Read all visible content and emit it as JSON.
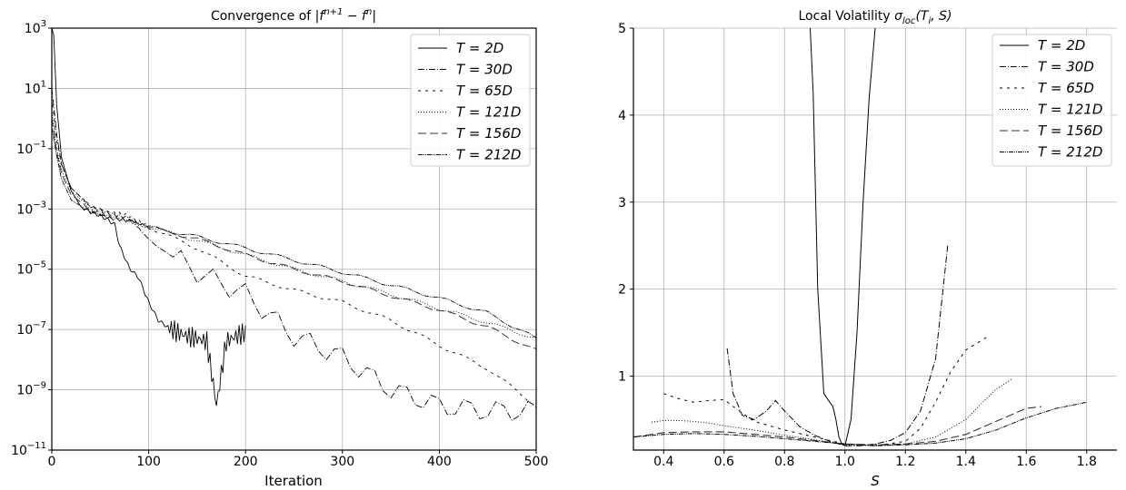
{
  "chart_data": [
    {
      "type": "line",
      "title": "Convergence of |f^{n+1} - f^n|",
      "title_parts": [
        "Convergence of ",
        "|f",
        "n+1",
        " − f",
        "n",
        "|"
      ],
      "xlabel": "Iteration",
      "ylabel": "",
      "yscale": "log",
      "xlim": [
        0,
        500
      ],
      "ylim_exp": [
        -11,
        3
      ],
      "xticks": [
        0,
        100,
        200,
        300,
        400,
        500
      ],
      "yticks_exp": [
        -11,
        -9,
        -7,
        -5,
        -3,
        -1,
        1,
        3
      ],
      "grid": true,
      "legend_position": "top-right",
      "series": [
        {
          "name": "T = 2D",
          "x": [
            0,
            2,
            5,
            10,
            20,
            30,
            40,
            50,
            60,
            65,
            70,
            80,
            90,
            100,
            110,
            120,
            130,
            140,
            150,
            160,
            170,
            180,
            190,
            200
          ],
          "y": [
            1000,
            600,
            3,
            0.05,
            0.004,
            0.0012,
            0.0008,
            0.0006,
            0.0004,
            0.0003,
            6e-05,
            1.1e-05,
            5e-06,
            8e-07,
            2e-07,
            1.2e-07,
            8e-08,
            6e-08,
            5e-08,
            4e-08,
            3e-10,
            4e-08,
            6e-08,
            8e-08
          ]
        },
        {
          "name": "T = 30D",
          "x": [
            0,
            5,
            10,
            20,
            40,
            60,
            80,
            100,
            150,
            200,
            250,
            300,
            350,
            400,
            450,
            500
          ],
          "y": [
            10,
            0.3,
            0.03,
            0.005,
            0.0012,
            0.0007,
            0.0005,
            0.0001,
            8e-06,
            1.5e-06,
            6e-08,
            1.2e-08,
            1e-09,
            3e-10,
            2e-10,
            2e-10
          ]
        },
        {
          "name": "T = 65D",
          "x": [
            0,
            5,
            10,
            20,
            40,
            60,
            80,
            100,
            150,
            200,
            250,
            300,
            350,
            400,
            450,
            500
          ],
          "y": [
            5,
            0.2,
            0.03,
            0.005,
            0.0012,
            0.0008,
            0.0006,
            0.00025,
            5e-05,
            6e-06,
            2e-06,
            8e-07,
            2e-07,
            3e-08,
            5e-09,
            3e-10
          ]
        },
        {
          "name": "T = 121D",
          "x": [
            0,
            5,
            10,
            20,
            40,
            60,
            80,
            100,
            150,
            200,
            250,
            300,
            350,
            400,
            450,
            500
          ],
          "y": [
            2,
            0.1,
            0.02,
            0.004,
            0.001,
            0.0006,
            0.0004,
            0.00025,
            9e-05,
            3e-05,
            1e-05,
            4e-06,
            1.5e-06,
            5e-07,
            1.7e-07,
            5e-08
          ]
        },
        {
          "name": "T = 156D",
          "x": [
            0,
            5,
            10,
            20,
            40,
            60,
            80,
            100,
            150,
            200,
            250,
            300,
            350,
            400,
            450,
            500
          ],
          "y": [
            1,
            0.08,
            0.015,
            0.003,
            0.0009,
            0.0005,
            0.0004,
            0.00025,
            0.0001,
            3e-05,
            1e-05,
            4e-06,
            1.3e-06,
            4.5e-07,
            1.2e-07,
            2e-08
          ]
        },
        {
          "name": "T = 212D",
          "x": [
            0,
            5,
            10,
            20,
            40,
            60,
            80,
            100,
            150,
            200,
            250,
            300,
            350,
            400,
            450,
            500
          ],
          "y": [
            0.5,
            0.06,
            0.01,
            0.002,
            0.0008,
            0.0005,
            0.0004,
            0.00025,
            0.00012,
            5e-05,
            2e-05,
            8e-06,
            3e-06,
            1.1e-06,
            3.5e-07,
            5e-08
          ]
        }
      ]
    },
    {
      "type": "line",
      "title": "Local Volatility σ_loc(T_i, S)",
      "title_parts": [
        "Local Volatility ",
        "σ",
        "loc",
        "(T",
        "i",
        ", S)"
      ],
      "xlabel": "S",
      "ylabel": "",
      "xlim": [
        0.3,
        1.9
      ],
      "ylim": [
        0.15,
        5
      ],
      "xticks": [
        0.4,
        0.6,
        0.8,
        1.0,
        1.2,
        1.4,
        1.6,
        1.8
      ],
      "yticks": [
        1,
        2,
        3,
        4,
        5
      ],
      "grid": true,
      "legend_position": "top-right",
      "series": [
        {
          "name": "T = 2D",
          "x": [
            0.885,
            0.895,
            0.91,
            0.93,
            0.95,
            0.96,
            0.97,
            0.98,
            0.99,
            1.0,
            1.02,
            1.04,
            1.06,
            1.08,
            1.1
          ],
          "y": [
            5.0,
            4.25,
            2.0,
            0.8,
            0.7,
            0.65,
            0.5,
            0.3,
            0.22,
            0.2,
            0.5,
            1.5,
            3.0,
            4.2,
            5.0
          ]
        },
        {
          "name": "T = 30D",
          "x": [
            0.61,
            0.63,
            0.66,
            0.7,
            0.74,
            0.77,
            0.8,
            0.85,
            0.9,
            0.95,
            1.0,
            1.05,
            1.1,
            1.15,
            1.2,
            1.25,
            1.3,
            1.34
          ],
          "y": [
            1.32,
            0.8,
            0.55,
            0.5,
            0.6,
            0.72,
            0.6,
            0.42,
            0.32,
            0.25,
            0.2,
            0.2,
            0.22,
            0.26,
            0.35,
            0.6,
            1.2,
            2.5
          ]
        },
        {
          "name": "T = 65D",
          "x": [
            0.4,
            0.45,
            0.5,
            0.55,
            0.6,
            0.65,
            0.7,
            0.8,
            0.9,
            1.0,
            1.1,
            1.2,
            1.25,
            1.3,
            1.35,
            1.4,
            1.47
          ],
          "y": [
            0.8,
            0.74,
            0.7,
            0.72,
            0.73,
            0.6,
            0.48,
            0.38,
            0.3,
            0.22,
            0.2,
            0.25,
            0.4,
            0.7,
            1.05,
            1.3,
            1.45
          ]
        },
        {
          "name": "T = 121D",
          "x": [
            0.36,
            0.4,
            0.45,
            0.5,
            0.55,
            0.6,
            0.7,
            0.8,
            0.9,
            1.0,
            1.1,
            1.2,
            1.3,
            1.4,
            1.45,
            1.5,
            1.55
          ],
          "y": [
            0.47,
            0.49,
            0.49,
            0.48,
            0.46,
            0.43,
            0.38,
            0.32,
            0.27,
            0.21,
            0.2,
            0.22,
            0.3,
            0.5,
            0.68,
            0.85,
            0.96
          ]
        },
        {
          "name": "T = 156D",
          "x": [
            0.3,
            0.4,
            0.5,
            0.6,
            0.7,
            0.8,
            0.9,
            1.0,
            1.1,
            1.2,
            1.3,
            1.4,
            1.5,
            1.6,
            1.65
          ],
          "y": [
            0.3,
            0.35,
            0.36,
            0.36,
            0.33,
            0.3,
            0.26,
            0.22,
            0.21,
            0.22,
            0.25,
            0.33,
            0.48,
            0.63,
            0.65
          ]
        },
        {
          "name": "T = 212D",
          "x": [
            0.3,
            0.4,
            0.5,
            0.6,
            0.7,
            0.8,
            0.9,
            1.0,
            1.1,
            1.2,
            1.3,
            1.4,
            1.5,
            1.6,
            1.7,
            1.8
          ],
          "y": [
            0.3,
            0.33,
            0.34,
            0.33,
            0.31,
            0.28,
            0.25,
            0.22,
            0.2,
            0.21,
            0.23,
            0.28,
            0.38,
            0.52,
            0.63,
            0.7
          ]
        }
      ]
    }
  ]
}
